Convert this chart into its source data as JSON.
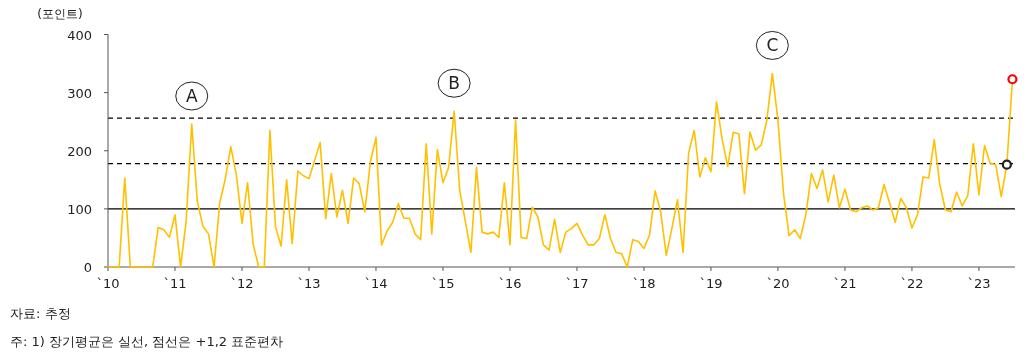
{
  "chart_data": {
    "type": "line",
    "ylabel": "(포인트)",
    "xlim": [
      "2010-01",
      "2023-07-15"
    ],
    "ylim": [
      0,
      400
    ],
    "xticks": [
      {
        "value": "2010",
        "label": "`10"
      },
      {
        "value": "2011",
        "label": "`11"
      },
      {
        "value": "2012",
        "label": "`12"
      },
      {
        "value": "2013",
        "label": "`13"
      },
      {
        "value": "2014",
        "label": "`14"
      },
      {
        "value": "2015",
        "label": "`15"
      },
      {
        "value": "2016",
        "label": "`16"
      },
      {
        "value": "2017",
        "label": "`17"
      },
      {
        "value": "2018",
        "label": "`18"
      },
      {
        "value": "2019",
        "label": "`19"
      },
      {
        "value": "2020",
        "label": "`20"
      },
      {
        "value": "2021",
        "label": "`21"
      },
      {
        "value": "2022",
        "label": "`22"
      },
      {
        "value": "2023",
        "label": "`23"
      }
    ],
    "yticks": [
      0,
      100,
      200,
      300,
      400
    ],
    "grid": false,
    "x": [
      "2010-01",
      "2010-02",
      "2010-03",
      "2010-04",
      "2010-05",
      "2010-06",
      "2010-07",
      "2010-08",
      "2010-09",
      "2010-10",
      "2010-11",
      "2010-12",
      "2011-01",
      "2011-02",
      "2011-03",
      "2011-04",
      "2011-05",
      "2011-06",
      "2011-07",
      "2011-08",
      "2011-09",
      "2011-10",
      "2011-11",
      "2011-12",
      "2012-01",
      "2012-02",
      "2012-03",
      "2012-04",
      "2012-05",
      "2012-06",
      "2012-07",
      "2012-08",
      "2012-09",
      "2012-10",
      "2012-11",
      "2012-12",
      "2013-01",
      "2013-02",
      "2013-03",
      "2013-04",
      "2013-05",
      "2013-06",
      "2013-07",
      "2013-08",
      "2013-09",
      "2013-10",
      "2013-11",
      "2013-12",
      "2014-01",
      "2014-02",
      "2014-03",
      "2014-04",
      "2014-05",
      "2014-06",
      "2014-07",
      "2014-08",
      "2014-09",
      "2014-10",
      "2014-11",
      "2014-12",
      "2015-01",
      "2015-02",
      "2015-03",
      "2015-04",
      "2015-05",
      "2015-06",
      "2015-07",
      "2015-08",
      "2015-09",
      "2015-10",
      "2015-11",
      "2015-12",
      "2016-01",
      "2016-02",
      "2016-03",
      "2016-04",
      "2016-05",
      "2016-06",
      "2016-07",
      "2016-08",
      "2016-09",
      "2016-10",
      "2016-11",
      "2016-12",
      "2017-01",
      "2017-02",
      "2017-03",
      "2017-04",
      "2017-05",
      "2017-06",
      "2017-07",
      "2017-08",
      "2017-09",
      "2017-10",
      "2017-11",
      "2017-12",
      "2018-01",
      "2018-02",
      "2018-03",
      "2018-04",
      "2018-05",
      "2018-06",
      "2018-07",
      "2018-08",
      "2018-09",
      "2018-10",
      "2018-11",
      "2018-12",
      "2019-01",
      "2019-02",
      "2019-03",
      "2019-04",
      "2019-05",
      "2019-06",
      "2019-07",
      "2019-08",
      "2019-09",
      "2019-10",
      "2019-11",
      "2019-12",
      "2020-01",
      "2020-02",
      "2020-03",
      "2020-04",
      "2020-05",
      "2020-06",
      "2020-07",
      "2020-08",
      "2020-09",
      "2020-10",
      "2020-11",
      "2020-12",
      "2021-01",
      "2021-02",
      "2021-03",
      "2021-04",
      "2021-05",
      "2021-06",
      "2021-07",
      "2021-08",
      "2021-09",
      "2021-10",
      "2021-11",
      "2021-12",
      "2022-01",
      "2022-02",
      "2022-03",
      "2022-04",
      "2022-05",
      "2022-06",
      "2022-07",
      "2022-08",
      "2022-09",
      "2022-10",
      "2022-11",
      "2022-12",
      "2023-01",
      "2023-02",
      "2023-03",
      "2023-04",
      "2023-05",
      "2023-06",
      "2023-07"
    ],
    "series": [
      {
        "color": "#ffc000",
        "marker": "none",
        "line_style": "solid",
        "values": [
          0,
          0,
          0,
          153,
          0,
          0,
          0,
          0,
          0,
          68,
          64,
          51,
          90,
          0,
          79,
          246,
          113,
          70,
          57,
          0,
          110,
          151,
          207,
          158,
          75,
          145,
          39,
          0,
          0,
          235,
          69,
          36,
          150,
          40,
          165,
          157,
          152,
          183,
          214,
          83,
          161,
          86,
          132,
          75,
          153,
          143,
          95,
          181,
          223,
          38,
          62,
          77,
          109,
          84,
          84,
          57,
          47,
          212,
          57,
          202,
          145,
          171,
          268,
          132,
          79,
          25,
          171,
          60,
          57,
          60,
          51,
          145,
          38,
          253,
          51,
          49,
          103,
          86,
          38,
          29,
          82,
          25,
          60,
          66,
          75,
          55,
          38,
          38,
          49,
          90,
          49,
          25,
          23,
          0,
          47,
          44,
          32,
          55,
          131,
          95,
          20,
          66,
          116,
          25,
          196,
          235,
          155,
          188,
          164,
          284,
          220,
          173,
          232,
          229,
          126,
          232,
          201,
          210,
          252,
          333,
          252,
          126,
          54,
          64,
          49,
          90,
          161,
          135,
          167,
          112,
          158,
          102,
          134,
          98,
          95,
          102,
          105,
          98,
          102,
          142,
          110,
          77,
          118,
          102,
          67,
          90,
          155,
          153,
          219,
          141,
          98,
          95,
          129,
          105,
          123,
          212,
          124,
          209,
          179,
          176,
          121,
          176,
          323
        ]
      },
      {
        "type": "scatter",
        "color": "#222222",
        "marker": "circle",
        "x": [
          "2023-06"
        ],
        "values": [
          176
        ]
      },
      {
        "type": "scatter",
        "color": "#ff0000",
        "marker": "circle",
        "x": [
          "2023-07"
        ],
        "values": [
          323
        ]
      }
    ],
    "ref_lines": [
      {
        "axis": "y",
        "value": 100,
        "color": "#000000",
        "line_style": "solid"
      },
      {
        "axis": "y",
        "value": 178,
        "color": "#000000",
        "line_style": "dashed"
      },
      {
        "axis": "y",
        "value": 256,
        "color": "#000000",
        "line_style": "dashed"
      }
    ],
    "annotations": [
      {
        "text": "A",
        "x": "2011-04",
        "y": 246
      },
      {
        "text": "B",
        "x": "2015-03",
        "y": 268
      },
      {
        "text": "C",
        "x": "2019-12",
        "y": 333
      },
      "자료: 추정",
      "주: 1) 장기평균은 실선, 점선은 +1,2 표준편차"
    ]
  }
}
